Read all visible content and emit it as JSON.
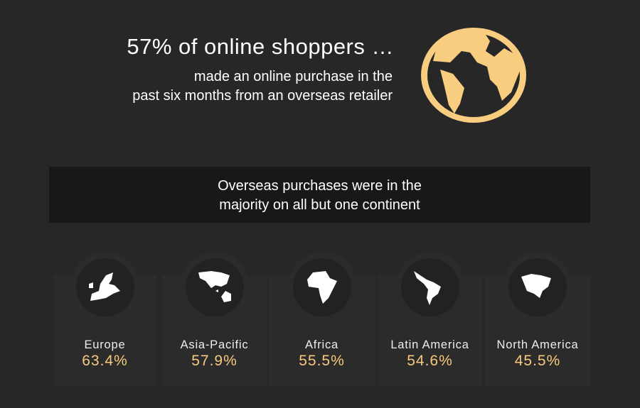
{
  "header": {
    "headline": "57% of online shoppers …",
    "subtext_line1": "made an online purchase in the",
    "subtext_line2": "past six months from an overseas retailer",
    "icon": "globe-icon",
    "accent": "#f9cd80"
  },
  "banner": {
    "line1": "Overseas purchases were in the",
    "line2": "majority on all but one continent"
  },
  "regions": [
    {
      "name": "Europe",
      "value": "63.4%",
      "icon": "europe-map-icon"
    },
    {
      "name": "Asia-Pacific",
      "value": "57.9%",
      "icon": "asia-pacific-map-icon"
    },
    {
      "name": "Africa",
      "value": "55.5%",
      "icon": "africa-map-icon"
    },
    {
      "name": "Latin America",
      "value": "54.6%",
      "icon": "latin-america-map-icon"
    },
    {
      "name": "North America",
      "value": "45.5%",
      "icon": "north-america-map-icon"
    }
  ]
}
